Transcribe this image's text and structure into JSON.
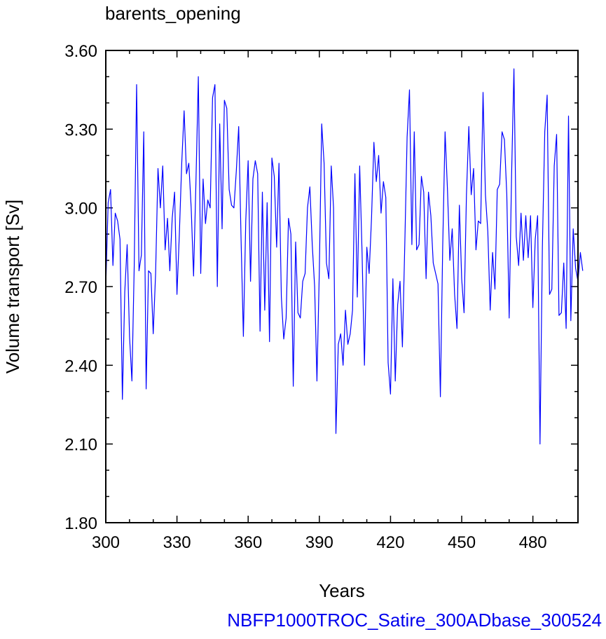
{
  "chart_data": {
    "type": "line",
    "title": "barents_opening",
    "xlabel": "Years",
    "ylabel": "Volume transport [Sv]",
    "footer": "NBFP1000TROC_Satire_300ADbase_300524",
    "xlim": [
      300,
      499
    ],
    "ylim": [
      1.8,
      3.6
    ],
    "xticks": [
      300,
      330,
      360,
      390,
      420,
      450,
      480
    ],
    "yticks": [
      1.8,
      2.1,
      2.4,
      2.7,
      3.0,
      3.3,
      3.6
    ],
    "grid": false,
    "series": [
      {
        "name": "",
        "color": "#0000ff",
        "x_start": 300,
        "x_step": 1,
        "values": [
          2.7,
          3.02,
          3.07,
          2.78,
          2.98,
          2.95,
          2.88,
          2.27,
          2.68,
          2.86,
          2.51,
          2.34,
          2.78,
          3.47,
          2.76,
          2.82,
          3.29,
          2.31,
          2.76,
          2.75,
          2.52,
          2.75,
          3.15,
          3.0,
          3.16,
          2.84,
          2.96,
          2.76,
          2.96,
          3.06,
          2.67,
          2.9,
          3.17,
          3.37,
          3.13,
          3.17,
          3.0,
          2.74,
          3.1,
          3.5,
          2.75,
          3.11,
          2.94,
          3.03,
          3.0,
          3.42,
          3.47,
          2.7,
          3.32,
          2.92,
          3.41,
          3.38,
          3.07,
          3.01,
          3.0,
          3.14,
          3.31,
          2.88,
          2.51,
          2.95,
          3.18,
          2.72,
          3.11,
          3.18,
          3.13,
          2.53,
          3.06,
          2.61,
          3.02,
          2.49,
          3.19,
          3.12,
          2.85,
          3.17,
          2.66,
          2.5,
          2.58,
          2.96,
          2.9,
          2.32,
          2.87,
          2.6,
          2.58,
          2.72,
          2.75,
          3.0,
          3.08,
          2.86,
          2.7,
          2.34,
          2.76,
          3.32,
          3.17,
          2.79,
          2.73,
          3.16,
          3.0,
          2.14,
          2.48,
          2.52,
          2.4,
          2.61,
          2.48,
          2.52,
          2.61,
          3.13,
          2.66,
          3.16,
          2.83,
          2.4,
          2.85,
          2.75,
          2.96,
          3.25,
          3.1,
          3.2,
          2.98,
          3.1,
          3.04,
          2.41,
          2.29,
          2.73,
          2.34,
          2.63,
          2.72,
          2.47,
          2.86,
          3.27,
          3.45,
          2.86,
          3.29,
          2.84,
          2.86,
          3.12,
          3.06,
          2.73,
          3.06,
          2.97,
          2.79,
          2.75,
          2.71,
          2.28,
          2.85,
          3.29,
          3.07,
          2.8,
          2.92,
          2.67,
          2.54,
          3.01,
          2.73,
          2.6,
          3.05,
          3.31,
          3.05,
          3.15,
          2.84,
          2.95,
          2.94,
          3.44,
          3.05,
          2.91,
          2.61,
          2.83,
          2.69,
          3.07,
          3.09,
          3.29,
          3.26,
          3.05,
          2.58,
          3.12,
          3.53,
          2.89,
          2.78,
          2.98,
          2.8,
          2.97,
          2.81,
          2.97,
          2.62,
          2.88,
          2.97,
          2.1,
          2.85,
          3.29,
          3.43,
          2.67,
          2.69,
          3.16,
          3.28,
          2.59,
          2.6,
          2.79,
          2.54,
          3.35,
          2.57,
          2.92,
          2.77,
          2.72,
          2.83,
          2.76
        ]
      }
    ]
  }
}
